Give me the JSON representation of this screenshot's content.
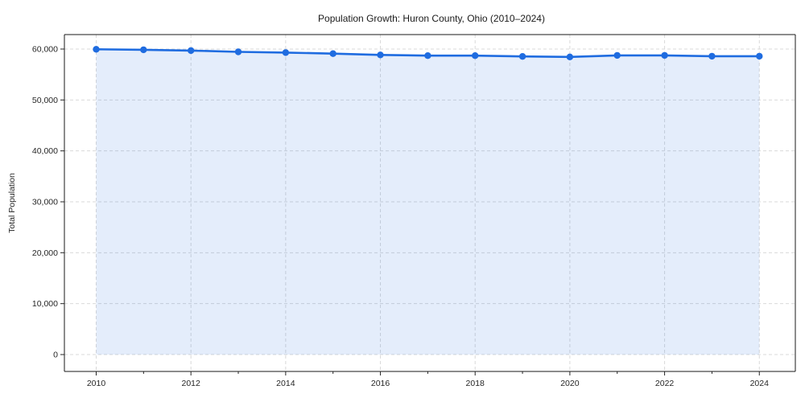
{
  "title": "Population Growth: Huron County, Ohio (2010–2024)",
  "chart_data": {
    "type": "line",
    "title": "Population Growth: Huron County, Ohio (2010–2024)",
    "xlabel": "",
    "ylabel": "Total Population",
    "x": [
      2010,
      2011,
      2012,
      2013,
      2014,
      2015,
      2016,
      2017,
      2018,
      2019,
      2020,
      2021,
      2022,
      2023,
      2024
    ],
    "series": [
      {
        "name": "Total Population",
        "values": [
          59950,
          59850,
          59700,
          59450,
          59300,
          59100,
          58850,
          58700,
          58700,
          58550,
          58450,
          58750,
          58750,
          58600,
          58600
        ]
      }
    ],
    "marker": "circle",
    "area_fill": true,
    "grid": "dashed",
    "legend": "none",
    "ylim": [
      -3300,
      62800
    ],
    "y_ticks": [
      0,
      10000,
      20000,
      30000,
      40000,
      50000,
      60000
    ],
    "y_tick_labels": [
      "0",
      "10,000",
      "20,000",
      "30,000",
      "40,000",
      "50,000",
      "60,000"
    ],
    "x_major_ticks": [
      2010,
      2012,
      2014,
      2016,
      2018,
      2020,
      2022,
      2024
    ],
    "x_minor_ticks": [
      2011,
      2013,
      2015,
      2017,
      2019,
      2021,
      2023
    ]
  },
  "colors": {
    "line": "#1f6ce0",
    "marker": "#1f6ce0",
    "area": "#1f6ce0",
    "area_opacity": "0.12",
    "gridline": "#d9d9d9",
    "spine": "#1a1a1a",
    "tick": "#262626",
    "text": "#262626",
    "background": "#ffffff"
  }
}
